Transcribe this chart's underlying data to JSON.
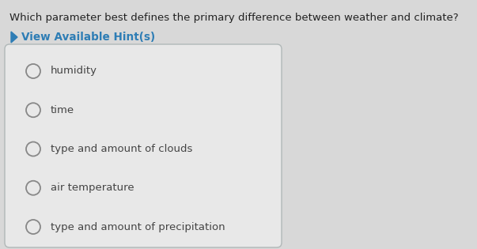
{
  "question": "Which parameter best defines the primary difference between weather and climate?",
  "hint_text": "View Available Hint(s)",
  "options": [
    "humidity",
    "time",
    "type and amount of clouds",
    "air temperature",
    "type and amount of precipitation"
  ],
  "bg_color": "#d8d8d8",
  "box_bg_color": "#e8e8e8",
  "box_border_color": "#b0b8b8",
  "question_color": "#222222",
  "hint_color": "#2e7db5",
  "option_color": "#444444",
  "circle_color": "#888888",
  "question_fontsize": 9.5,
  "hint_fontsize": 9.8,
  "option_fontsize": 9.5
}
